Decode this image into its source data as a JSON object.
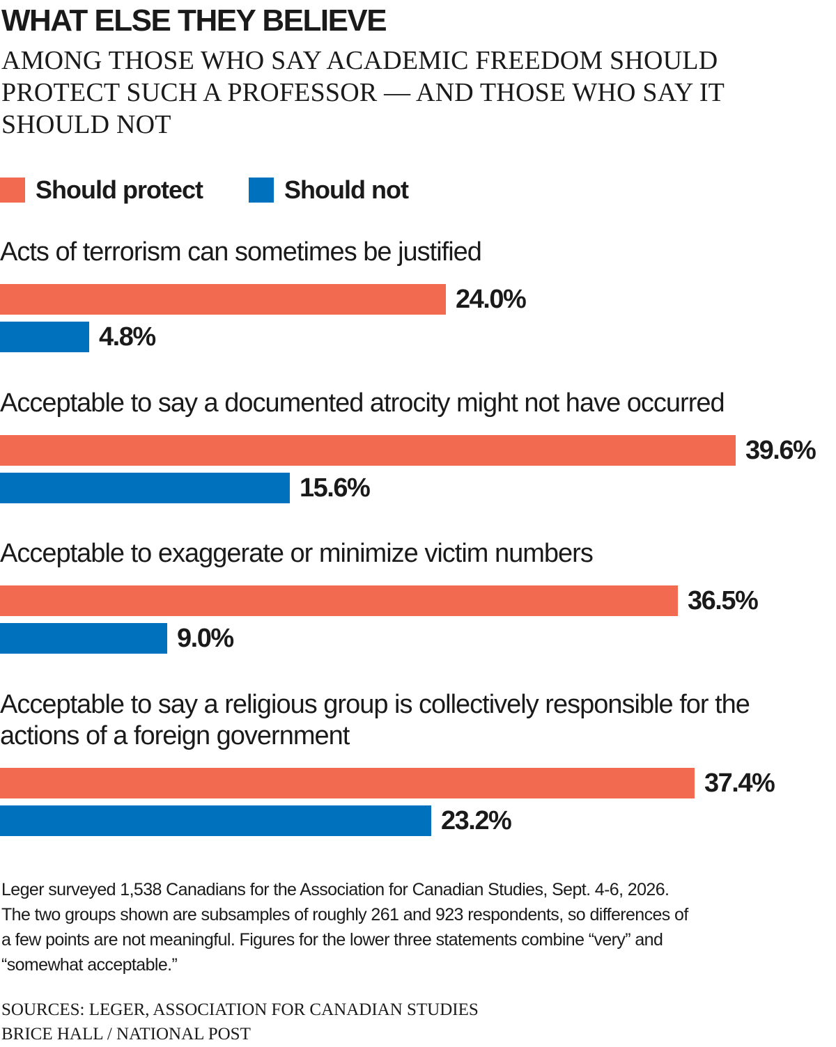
{
  "chart_data": {
    "type": "bar",
    "orientation": "horizontal",
    "title": "WHAT ELSE THEY BELIEVE",
    "subtitle": "AMONG THOSE WHO SAY ACADEMIC FREEDOM SHOULD PROTECT SUCH A PROFESSOR — AND THOSE WHO SAY IT SHOULD NOT",
    "legend_position": "top-left",
    "grid": false,
    "xlim": [
      0,
      40
    ],
    "value_format": "percent",
    "categories": [
      "Acts of terrorism can sometimes be justified",
      "Acceptable to say a documented atrocity might not have occurred",
      "Acceptable to exaggerate or minimize victim numbers",
      "Acceptable to say a religious group is collectively responsible for the actions of a foreign government"
    ],
    "series": [
      {
        "name": "Should protect",
        "color": "#f26a4f",
        "values": [
          24.0,
          39.6,
          36.5,
          37.4
        ],
        "labels": [
          "24.0%",
          "39.6%",
          "36.5%",
          "37.4%"
        ]
      },
      {
        "name": "Should not",
        "color": "#0071bc",
        "values": [
          4.8,
          15.6,
          9.0,
          23.2
        ],
        "labels": [
          "4.8%",
          "15.6%",
          "9.0%",
          "23.2%"
        ]
      }
    ]
  },
  "note": "Leger surveyed 1,538 Canadians for the Association for Canadian Studies, Sept. 4-6, 2026. The two groups shown are subsamples of roughly 261 and 923 respondents, so differences of a few points are not meaningful. Figures for the lower three statements combine “very” and “somewhat acceptable.”",
  "sources": "SOURCES: LEGER, ASSOCIATION FOR CANADIAN STUDIES",
  "credit": "BRICE HALL / NATIONAL POST"
}
